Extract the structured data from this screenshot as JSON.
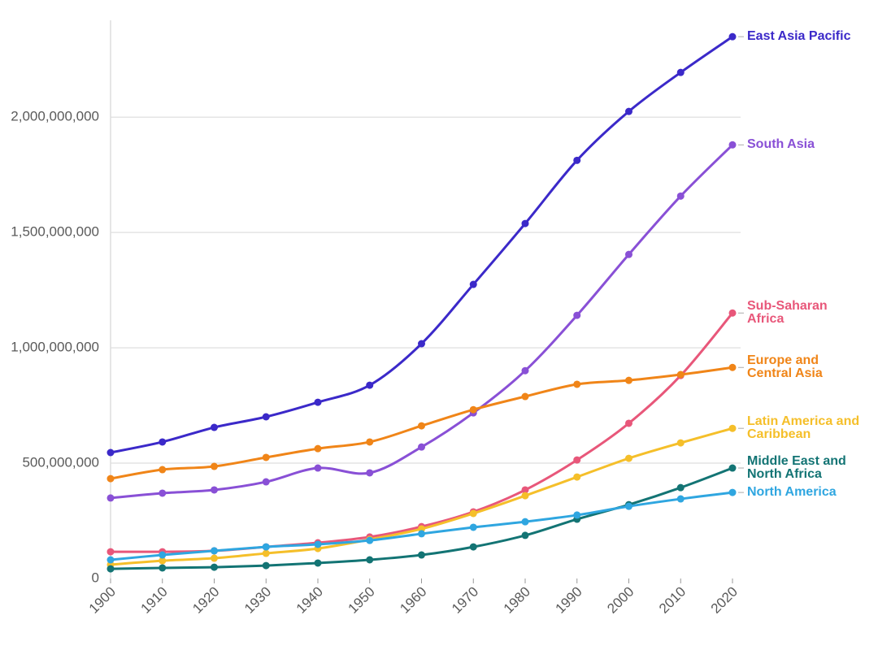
{
  "chart_data": {
    "type": "line",
    "x": [
      1900,
      1910,
      1920,
      1930,
      1940,
      1950,
      1960,
      1970,
      1980,
      1990,
      2000,
      2010,
      2020
    ],
    "xlim": [
      1900,
      2020
    ],
    "xticks": [
      1900,
      1910,
      1920,
      1930,
      1940,
      1950,
      1960,
      1970,
      1980,
      1990,
      2000,
      2010,
      2020
    ],
    "ylim": [
      0,
      2420000000
    ],
    "yticks": [
      0,
      {
        "value": 500000000,
        "label": "500,000,000"
      },
      {
        "value": 1000000000,
        "label": "1,000,000,000"
      },
      {
        "value": 1500000000,
        "label": "1,500,000,000"
      },
      {
        "value": 2000000000,
        "label": "2,000,000,000"
      }
    ],
    "grid": true,
    "series": [
      {
        "name": "East Asia Pacific",
        "color": "#3b29c9",
        "values": [
          546000000,
          592000000,
          655000000,
          701000000,
          764000000,
          838000000,
          1018000000,
          1275000000,
          1539000000,
          1813000000,
          2025000000,
          2194000000,
          2349000000
        ]
      },
      {
        "name": "South Asia",
        "color": "#8950d6",
        "values": [
          349000000,
          370000000,
          384000000,
          419000000,
          479000000,
          458000000,
          570000000,
          718000000,
          901000000,
          1141000000,
          1405000000,
          1658000000,
          1880000000
        ]
      },
      {
        "name": "Sub-Saharan Africa",
        "color": "#e8577a",
        "values": [
          116000000,
          116000000,
          120000000,
          137000000,
          155000000,
          180000000,
          225000000,
          289000000,
          384000000,
          514000000,
          673000000,
          880000000,
          1151000000
        ]
      },
      {
        "name": "Europe and Central Asia",
        "color": "#f08518",
        "values": [
          433000000,
          472000000,
          486000000,
          525000000,
          563000000,
          592000000,
          662000000,
          732000000,
          789000000,
          842000000,
          859000000,
          884000000,
          915000000
        ]
      },
      {
        "name": "Latin America and Caribbean",
        "color": "#f5bf2a",
        "values": [
          60000000,
          77000000,
          88000000,
          109000000,
          130000000,
          169000000,
          215000000,
          282000000,
          359000000,
          440000000,
          521000000,
          588000000,
          651000000
        ]
      },
      {
        "name": "Middle East and North Africa",
        "color": "#137474",
        "values": [
          42000000,
          46000000,
          49000000,
          56000000,
          67000000,
          81000000,
          102000000,
          137000000,
          187000000,
          257000000,
          320000000,
          394000000,
          479000000
        ]
      },
      {
        "name": "North America",
        "color": "#2fa6e0",
        "values": [
          81000000,
          102000000,
          120000000,
          137000000,
          148000000,
          165000000,
          194000000,
          222000000,
          246000000,
          275000000,
          313000000,
          345000000,
          373000000
        ]
      }
    ]
  }
}
